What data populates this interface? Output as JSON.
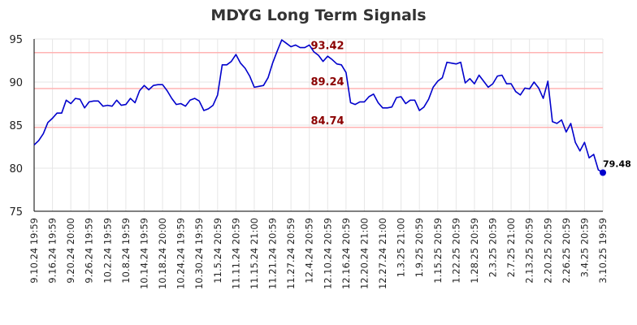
{
  "chart_data": {
    "type": "line",
    "title": "MDYG Long Term Signals",
    "xlabel": "",
    "ylabel": "",
    "ylim": [
      75,
      95
    ],
    "yticks": [
      75,
      80,
      85,
      90,
      95
    ],
    "grid": true,
    "line_color": "#0000cc",
    "reference_color": "#ffb3b3",
    "reference_lines": [
      {
        "value": 93.42,
        "label": "93.42"
      },
      {
        "value": 89.24,
        "label": "89.24"
      },
      {
        "value": 84.74,
        "label": "84.74"
      }
    ],
    "last_point": {
      "value": 79.48,
      "label": "79.48"
    },
    "xtick_labels": [
      "9.10.24 19:59",
      "9.16.24 19:59",
      "9.20.24 20:00",
      "9.26.24 19:59",
      "10.2.24 19:59",
      "10.8.24 19:59",
      "10.14.24 19:59",
      "10.18.24 20:00",
      "10.24.24 19:59",
      "10.30.24 19:59",
      "11.5.24 20:59",
      "11.11.24 20:59",
      "11.15.24 21:00",
      "11.21.24 20:59",
      "11.27.24 20:59",
      "12.4.24 20:59",
      "12.10.24 20:59",
      "12.16.24 20:59",
      "12.20.24 21:00",
      "12.27.24 21:00",
      "1.3.25 21:00",
      "1.9.25 20:59",
      "1.15.25 20:59",
      "1.22.25 20:59",
      "1.28.25 20:59",
      "2.3.25 20:59",
      "2.7.25 21:00",
      "2.13.25 20:59",
      "2.20.25 20:59",
      "2.26.25 20:59",
      "3.4.25 20:59",
      "3.10.25 19:59"
    ],
    "values": [
      82.7,
      83.2,
      84.0,
      85.3,
      85.8,
      86.4,
      86.4,
      87.9,
      87.5,
      88.1,
      88.0,
      87.0,
      87.7,
      87.8,
      87.8,
      87.2,
      87.3,
      87.2,
      87.9,
      87.3,
      87.4,
      88.1,
      87.6,
      89.0,
      89.6,
      89.1,
      89.6,
      89.7,
      89.7,
      89.0,
      88.1,
      87.4,
      87.5,
      87.2,
      87.9,
      88.1,
      87.8,
      86.7,
      86.9,
      87.3,
      88.5,
      92.0,
      92.0,
      92.4,
      93.2,
      92.2,
      91.6,
      90.7,
      89.4,
      89.5,
      89.6,
      90.5,
      92.2,
      93.6,
      94.9,
      94.5,
      94.1,
      94.3,
      94.0,
      94.0,
      94.3,
      93.5,
      93.1,
      92.4,
      93.0,
      92.6,
      92.1,
      92.0,
      91.1,
      87.6,
      87.4,
      87.7,
      87.7,
      88.3,
      88.6,
      87.6,
      87.0,
      87.0,
      87.1,
      88.2,
      88.3,
      87.5,
      87.9,
      87.9,
      86.7,
      87.1,
      88.0,
      89.4,
      90.1,
      90.5,
      92.3,
      92.2,
      92.1,
      92.3,
      89.9,
      90.4,
      89.8,
      90.8,
      90.1,
      89.4,
      89.8,
      90.7,
      90.8,
      89.8,
      89.8,
      88.9,
      88.5,
      89.3,
      89.2,
      90.0,
      89.3,
      88.1,
      90.1,
      85.4,
      85.2,
      85.6,
      84.2,
      85.2,
      83.0,
      82.0,
      83.0,
      81.2,
      81.6,
      79.8,
      79.48
    ]
  }
}
